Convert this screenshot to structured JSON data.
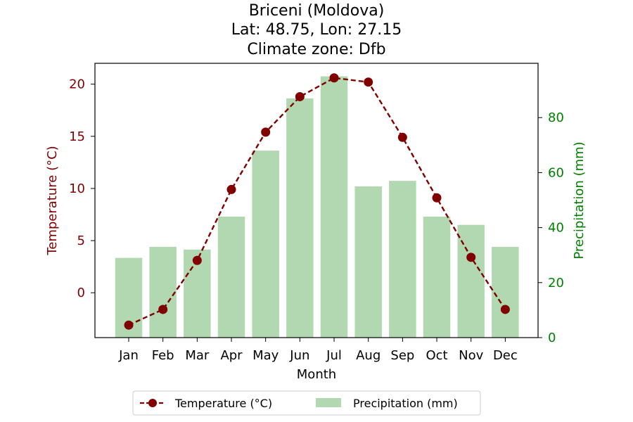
{
  "chart_data": {
    "type": "bar+line",
    "title_lines": [
      "Briceni (Moldova)",
      "Lat: 48.75, Lon: 27.15",
      "Climate zone: Dfb"
    ],
    "categories": [
      "Jan",
      "Feb",
      "Mar",
      "Apr",
      "May",
      "Jun",
      "Jul",
      "Aug",
      "Sep",
      "Oct",
      "Nov",
      "Dec"
    ],
    "xlabel": "Month",
    "temperature": {
      "name": "Temperature (°C)",
      "axis_label": "Temperature (°C)",
      "values": [
        -3.1,
        -1.6,
        3.1,
        9.9,
        15.4,
        18.8,
        20.6,
        20.2,
        14.9,
        9.1,
        3.4,
        -1.6
      ],
      "ylim": [
        -4.3,
        22.0
      ],
      "ticks": [
        0,
        5,
        10,
        15,
        20
      ],
      "color": "#800000",
      "style": "dashed line with circle markers",
      "axis_side": "left"
    },
    "precipitation": {
      "name": "Precipitation (mm)",
      "axis_label": "Precipitation (mm)",
      "values": [
        29,
        33,
        32,
        44,
        68,
        87,
        95,
        55,
        57,
        44,
        41,
        33
      ],
      "ylim": [
        0,
        99.75
      ],
      "ticks": [
        0,
        20,
        40,
        60,
        80
      ],
      "color": "#b2d8b2",
      "tick_color": "#008000",
      "axis_side": "right"
    },
    "grid": false,
    "legend": {
      "placement": "bottom-center",
      "entries": [
        "Temperature (°C)",
        "Precipitation (mm)"
      ]
    }
  }
}
